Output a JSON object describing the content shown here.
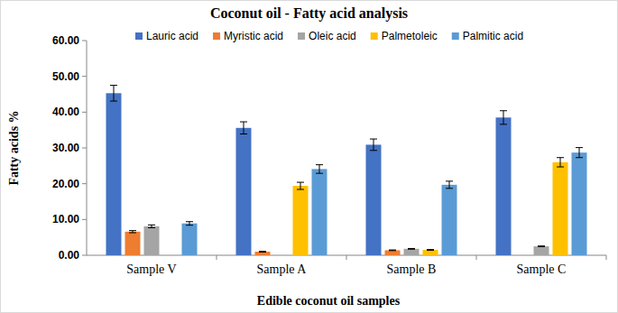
{
  "chart_data": {
    "type": "bar",
    "title": "Coconut oil - Fatty acid analysis",
    "x_label": "Edible coconut oil samples",
    "y_label": "Fatty acids %",
    "categories": [
      "Sample V",
      "Sample A",
      "Sample B",
      "Sample C"
    ],
    "series": [
      {
        "name": "Lauric acid",
        "color": "#4472c4",
        "values": [
          45.3,
          35.6,
          30.9,
          38.5
        ],
        "errors": [
          2.2,
          1.7,
          1.6,
          1.9
        ]
      },
      {
        "name": "Myristic acid",
        "color": "#ed7d31",
        "values": [
          6.6,
          1.0,
          1.4,
          null
        ],
        "errors": [
          0.3,
          0.1,
          0.1,
          null
        ]
      },
      {
        "name": "Oleic acid",
        "color": "#a5a5a5",
        "values": [
          8.1,
          null,
          1.8,
          2.5
        ],
        "errors": [
          0.4,
          null,
          0.1,
          0.1
        ]
      },
      {
        "name": "Palmetoleic",
        "color": "#ffc000",
        "values": [
          null,
          19.4,
          1.5,
          26.0
        ],
        "errors": [
          null,
          1.0,
          0.1,
          1.3
        ]
      },
      {
        "name": "Palmitic acid",
        "color": "#5b9bd5",
        "values": [
          8.9,
          24.1,
          19.7,
          28.7
        ],
        "errors": [
          0.5,
          1.2,
          1.0,
          1.4
        ]
      }
    ],
    "ylim": [
      0,
      60
    ],
    "yticks": [
      {
        "value": 0,
        "label": "0.00"
      },
      {
        "value": 10,
        "label": "10.00"
      },
      {
        "value": 20,
        "label": "20.00"
      },
      {
        "value": 30,
        "label": "30.00"
      },
      {
        "value": 40,
        "label": "40.00"
      },
      {
        "value": 50,
        "label": "50.00"
      },
      {
        "value": 60,
        "label": "60.00"
      }
    ],
    "grid": false,
    "legend": "top"
  }
}
